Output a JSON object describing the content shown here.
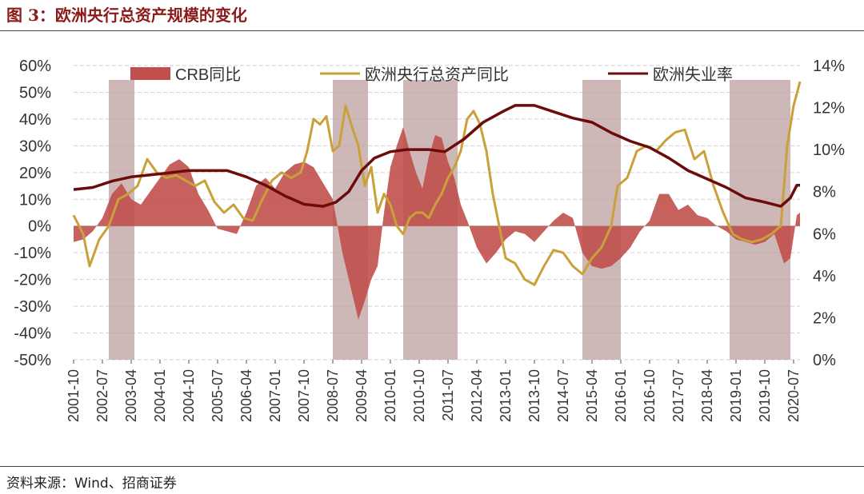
{
  "figure": {
    "title": "图 3：欧洲央行总资产规模的变化",
    "source": "资料来源：Wind、招商证券"
  },
  "chart_data": {
    "type": "combo",
    "x_tick_labels": [
      "2001-10",
      "2002-07",
      "2003-04",
      "2004-01",
      "2004-10",
      "2005-07",
      "2006-04",
      "2007-01",
      "2007-10",
      "2008-07",
      "2009-04",
      "2010-01",
      "2010-10",
      "2011-07",
      "2012-04",
      "2013-01",
      "2013-10",
      "2014-07",
      "2015-04",
      "2016-01",
      "2016-10",
      "2017-07",
      "2018-04",
      "2019-01",
      "2019-10",
      "2020-07"
    ],
    "x_range": [
      "2001-10",
      "2020-09"
    ],
    "y_left": {
      "ticks": [
        "60%",
        "50%",
        "40%",
        "30%",
        "20%",
        "10%",
        "0%",
        "-10%",
        "-20%",
        "-30%",
        "-40%",
        "-50%"
      ],
      "min": -50,
      "max": 60
    },
    "y_right": {
      "ticks": [
        "14%",
        "12%",
        "10%",
        "8%",
        "6%",
        "4%",
        "2%",
        "0%"
      ],
      "min": 0,
      "max": 14
    },
    "grid": true,
    "legend_position": "top",
    "shaded_periods": [
      [
        "2002-09",
        "2003-05"
      ],
      [
        "2008-07",
        "2009-06"
      ],
      [
        "2010-05",
        "2011-10"
      ],
      [
        "2015-01",
        "2016-01"
      ],
      [
        "2018-11",
        "2020-06"
      ]
    ],
    "series": [
      {
        "name": "CRB同比",
        "kind": "area",
        "axis": "left",
        "color": "#c0504d",
        "points": [
          [
            "2001-10",
            -6
          ],
          [
            "2002-01",
            -5
          ],
          [
            "2002-04",
            -2
          ],
          [
            "2002-07",
            3
          ],
          [
            "2002-10",
            12
          ],
          [
            "2003-01",
            16
          ],
          [
            "2003-04",
            10
          ],
          [
            "2003-07",
            8
          ],
          [
            "2003-10",
            13
          ],
          [
            "2004-01",
            18
          ],
          [
            "2004-04",
            23
          ],
          [
            "2004-07",
            25
          ],
          [
            "2004-10",
            22
          ],
          [
            "2005-01",
            12
          ],
          [
            "2005-04",
            6
          ],
          [
            "2005-07",
            -1
          ],
          [
            "2005-10",
            -2
          ],
          [
            "2006-01",
            -3
          ],
          [
            "2006-04",
            5
          ],
          [
            "2006-07",
            15
          ],
          [
            "2006-10",
            18
          ],
          [
            "2007-01",
            14
          ],
          [
            "2007-04",
            20
          ],
          [
            "2007-07",
            23
          ],
          [
            "2007-10",
            24
          ],
          [
            "2008-01",
            22
          ],
          [
            "2008-04",
            16
          ],
          [
            "2008-07",
            10
          ],
          [
            "2008-10",
            -10
          ],
          [
            "2009-01",
            -25
          ],
          [
            "2009-03",
            -35
          ],
          [
            "2009-05",
            -28
          ],
          [
            "2009-07",
            -20
          ],
          [
            "2009-09",
            -15
          ],
          [
            "2009-11",
            5
          ],
          [
            "2010-01",
            22
          ],
          [
            "2010-03",
            30
          ],
          [
            "2010-05",
            37
          ],
          [
            "2010-07",
            28
          ],
          [
            "2010-09",
            20
          ],
          [
            "2010-11",
            14
          ],
          [
            "2011-01",
            26
          ],
          [
            "2011-03",
            34
          ],
          [
            "2011-05",
            33
          ],
          [
            "2011-07",
            24
          ],
          [
            "2011-09",
            18
          ],
          [
            "2011-11",
            8
          ],
          [
            "2012-01",
            2
          ],
          [
            "2012-04",
            -8
          ],
          [
            "2012-07",
            -14
          ],
          [
            "2012-10",
            -10
          ],
          [
            "2013-01",
            -5
          ],
          [
            "2013-04",
            -2
          ],
          [
            "2013-07",
            -3
          ],
          [
            "2013-10",
            -6
          ],
          [
            "2014-01",
            -2
          ],
          [
            "2014-04",
            2
          ],
          [
            "2014-07",
            5
          ],
          [
            "2014-10",
            3
          ],
          [
            "2015-01",
            -10
          ],
          [
            "2015-04",
            -15
          ],
          [
            "2015-07",
            -16
          ],
          [
            "2015-10",
            -15
          ],
          [
            "2016-01",
            -12
          ],
          [
            "2016-04",
            -8
          ],
          [
            "2016-07",
            -2
          ],
          [
            "2016-10",
            2
          ],
          [
            "2017-01",
            12
          ],
          [
            "2017-04",
            12
          ],
          [
            "2017-07",
            6
          ],
          [
            "2017-10",
            8
          ],
          [
            "2018-01",
            4
          ],
          [
            "2018-04",
            3
          ],
          [
            "2018-07",
            0
          ],
          [
            "2018-10",
            -2
          ],
          [
            "2019-01",
            -5
          ],
          [
            "2019-04",
            -6
          ],
          [
            "2019-07",
            -7
          ],
          [
            "2019-10",
            -6
          ],
          [
            "2020-01",
            -3
          ],
          [
            "2020-04",
            -14
          ],
          [
            "2020-06",
            -12
          ],
          [
            "2020-08",
            4
          ],
          [
            "2020-09",
            5
          ]
        ]
      },
      {
        "name": "欧洲央行总资产同比",
        "kind": "line",
        "axis": "left",
        "color": "#c9a03a",
        "points": [
          [
            "2001-10",
            4
          ],
          [
            "2002-01",
            -3
          ],
          [
            "2002-03",
            -15
          ],
          [
            "2002-06",
            -5
          ],
          [
            "2002-09",
            0
          ],
          [
            "2002-12",
            10
          ],
          [
            "2003-03",
            12
          ],
          [
            "2003-06",
            15
          ],
          [
            "2003-09",
            25
          ],
          [
            "2003-12",
            20
          ],
          [
            "2004-03",
            18
          ],
          [
            "2004-06",
            19
          ],
          [
            "2004-09",
            17
          ],
          [
            "2004-12",
            15
          ],
          [
            "2005-03",
            17
          ],
          [
            "2005-06",
            9
          ],
          [
            "2005-09",
            5
          ],
          [
            "2005-12",
            8
          ],
          [
            "2006-03",
            3
          ],
          [
            "2006-06",
            2
          ],
          [
            "2006-09",
            10
          ],
          [
            "2006-12",
            17
          ],
          [
            "2007-03",
            20
          ],
          [
            "2007-06",
            18
          ],
          [
            "2007-09",
            20
          ],
          [
            "2007-11",
            28
          ],
          [
            "2008-01",
            40
          ],
          [
            "2008-03",
            38
          ],
          [
            "2008-05",
            41
          ],
          [
            "2008-07",
            28
          ],
          [
            "2008-09",
            30
          ],
          [
            "2008-11",
            45
          ],
          [
            "2009-01",
            37
          ],
          [
            "2009-03",
            30
          ],
          [
            "2009-05",
            15
          ],
          [
            "2009-07",
            22
          ],
          [
            "2009-09",
            5
          ],
          [
            "2009-11",
            12
          ],
          [
            "2010-01",
            8
          ],
          [
            "2010-03",
            0
          ],
          [
            "2010-05",
            -3
          ],
          [
            "2010-07",
            3
          ],
          [
            "2010-09",
            5
          ],
          [
            "2010-11",
            5
          ],
          [
            "2011-01",
            3
          ],
          [
            "2011-03",
            8
          ],
          [
            "2011-05",
            12
          ],
          [
            "2011-07",
            18
          ],
          [
            "2011-09",
            22
          ],
          [
            "2011-11",
            28
          ],
          [
            "2012-01",
            40
          ],
          [
            "2012-03",
            43
          ],
          [
            "2012-05",
            38
          ],
          [
            "2012-07",
            28
          ],
          [
            "2012-09",
            12
          ],
          [
            "2012-11",
            0
          ],
          [
            "2013-01",
            -12
          ],
          [
            "2013-04",
            -14
          ],
          [
            "2013-07",
            -20
          ],
          [
            "2013-10",
            -22
          ],
          [
            "2014-01",
            -15
          ],
          [
            "2014-04",
            -9
          ],
          [
            "2014-07",
            -10
          ],
          [
            "2014-10",
            -15
          ],
          [
            "2015-01",
            -18
          ],
          [
            "2015-04",
            -12
          ],
          [
            "2015-07",
            -8
          ],
          [
            "2015-10",
            0
          ],
          [
            "2015-12",
            15
          ],
          [
            "2016-03",
            18
          ],
          [
            "2016-06",
            28
          ],
          [
            "2016-09",
            30
          ],
          [
            "2016-12",
            28
          ],
          [
            "2017-03",
            32
          ],
          [
            "2017-06",
            35
          ],
          [
            "2017-09",
            36
          ],
          [
            "2017-12",
            25
          ],
          [
            "2018-03",
            28
          ],
          [
            "2018-06",
            15
          ],
          [
            "2018-09",
            5
          ],
          [
            "2018-12",
            -3
          ],
          [
            "2019-03",
            -5
          ],
          [
            "2019-06",
            -6
          ],
          [
            "2019-09",
            -5
          ],
          [
            "2019-12",
            -3
          ],
          [
            "2020-03",
            0
          ],
          [
            "2020-05",
            30
          ],
          [
            "2020-07",
            45
          ],
          [
            "2020-09",
            54
          ]
        ]
      },
      {
        "name": "欧洲失业率",
        "kind": "line",
        "axis": "right",
        "color": "#6b0b0b",
        "points": [
          [
            "2001-10",
            8.1
          ],
          [
            "2002-04",
            8.2
          ],
          [
            "2002-10",
            8.5
          ],
          [
            "2003-04",
            8.7
          ],
          [
            "2003-10",
            8.8
          ],
          [
            "2004-04",
            8.9
          ],
          [
            "2004-10",
            9.0
          ],
          [
            "2005-04",
            9.0
          ],
          [
            "2005-10",
            9.0
          ],
          [
            "2006-04",
            8.7
          ],
          [
            "2006-10",
            8.3
          ],
          [
            "2007-04",
            7.8
          ],
          [
            "2007-10",
            7.4
          ],
          [
            "2008-04",
            7.3
          ],
          [
            "2008-08",
            7.5
          ],
          [
            "2008-12",
            8.0
          ],
          [
            "2009-04",
            9.0
          ],
          [
            "2009-08",
            9.6
          ],
          [
            "2010-01",
            9.9
          ],
          [
            "2010-06",
            10.0
          ],
          [
            "2011-01",
            10.0
          ],
          [
            "2011-06",
            9.9
          ],
          [
            "2011-12",
            10.5
          ],
          [
            "2012-06",
            11.3
          ],
          [
            "2012-12",
            11.8
          ],
          [
            "2013-04",
            12.1
          ],
          [
            "2013-10",
            12.1
          ],
          [
            "2014-04",
            11.8
          ],
          [
            "2014-10",
            11.5
          ],
          [
            "2015-04",
            11.3
          ],
          [
            "2015-10",
            10.8
          ],
          [
            "2016-04",
            10.4
          ],
          [
            "2016-10",
            10.1
          ],
          [
            "2017-04",
            9.6
          ],
          [
            "2017-10",
            9.0
          ],
          [
            "2018-04",
            8.6
          ],
          [
            "2018-10",
            8.2
          ],
          [
            "2019-04",
            7.7
          ],
          [
            "2019-10",
            7.5
          ],
          [
            "2020-03",
            7.3
          ],
          [
            "2020-06",
            7.7
          ],
          [
            "2020-08",
            8.3
          ],
          [
            "2020-09",
            8.3
          ]
        ]
      }
    ]
  }
}
